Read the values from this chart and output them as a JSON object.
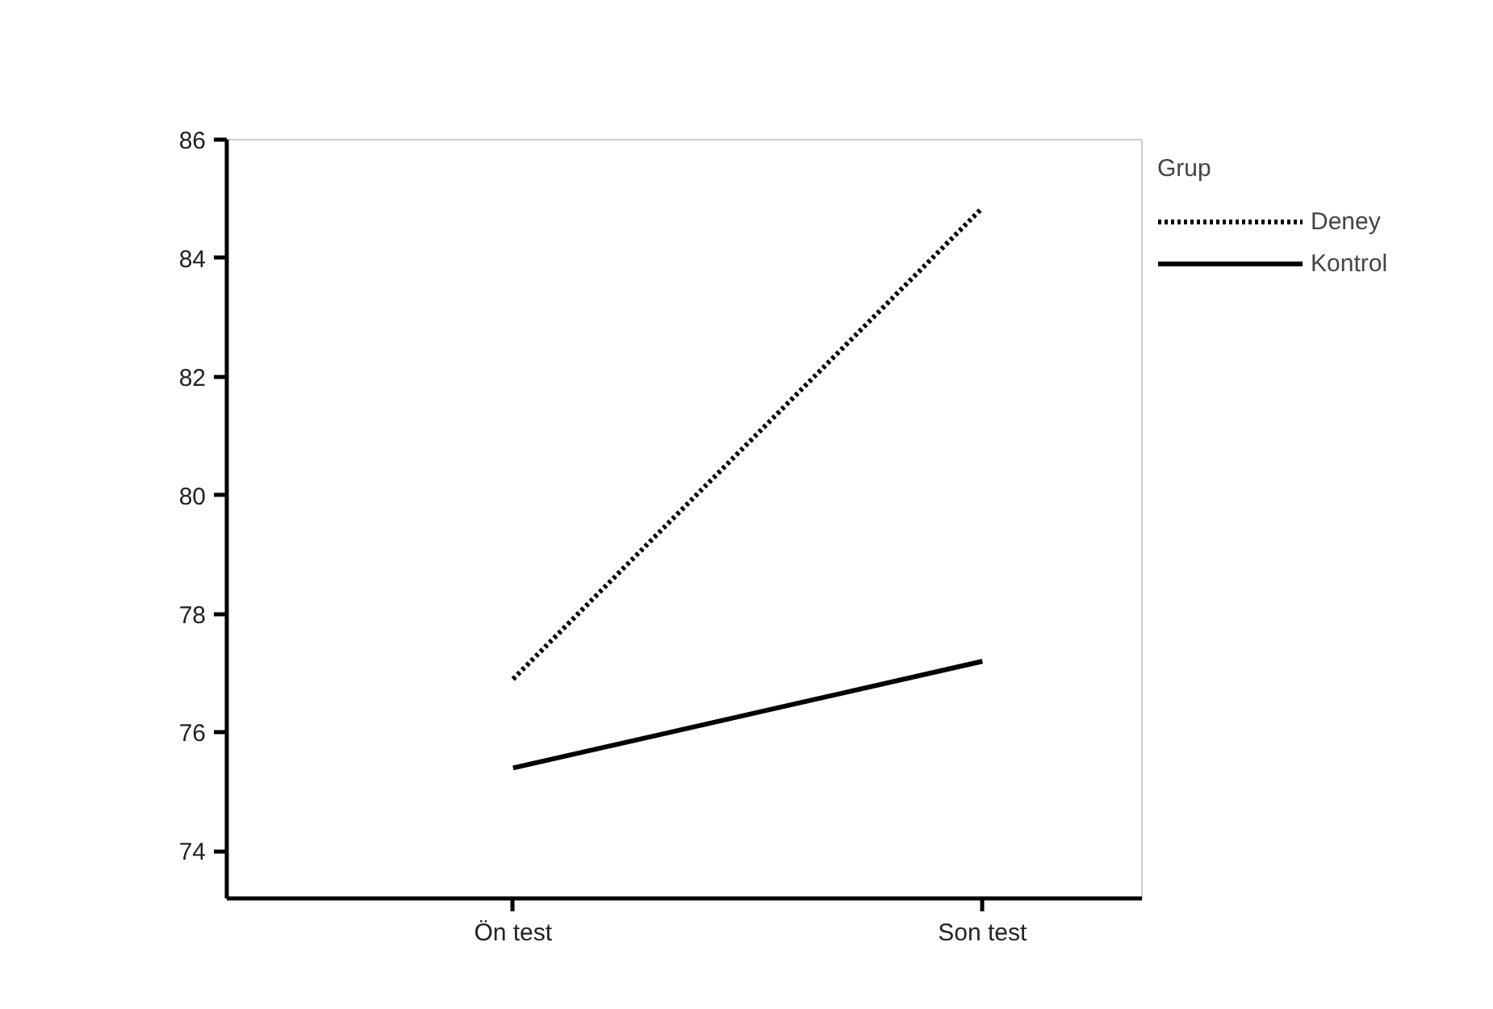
{
  "chart_data": {
    "type": "line",
    "categories": [
      "Ön test",
      "Son test"
    ],
    "legend_title": "Grup",
    "legend": "top right",
    "grid": false,
    "marker": "none",
    "ylim": [
      73.2,
      86
    ],
    "yticks": [
      74,
      76,
      78,
      80,
      82,
      84,
      86
    ],
    "series": [
      {
        "name": "Deney",
        "color": "#000000",
        "line_style": "dotted",
        "values": [
          76.9,
          84.85
        ]
      },
      {
        "name": "Kontrol",
        "color": "#000000",
        "line_style": "solid",
        "values": [
          75.4,
          77.2
        ]
      }
    ]
  }
}
